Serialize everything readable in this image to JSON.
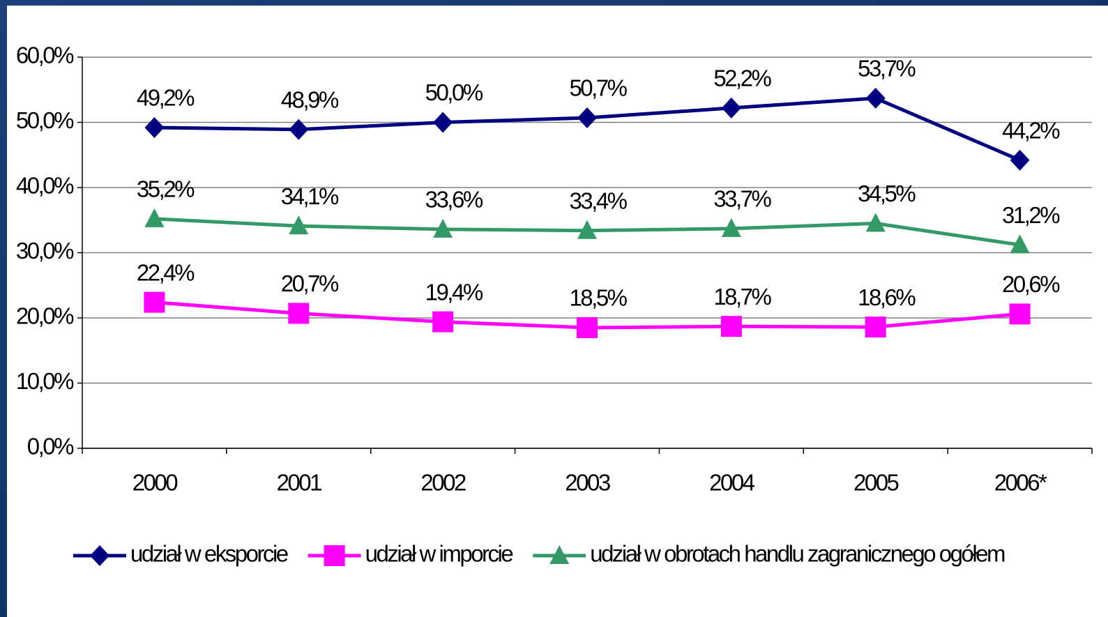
{
  "chart_data": {
    "type": "line",
    "categories": [
      "2000",
      "2001",
      "2002",
      "2003",
      "2004",
      "2005",
      "2006*"
    ],
    "series": [
      {
        "name": "udział w eksporcie",
        "color": "#000080",
        "marker": "diamond",
        "values": [
          49.2,
          48.9,
          50.0,
          50.7,
          52.2,
          53.7,
          44.2
        ],
        "value_labels": [
          "49,2%",
          "48,9%",
          "50,0%",
          "50,7%",
          "52,2%",
          "53,7%",
          "44,2%"
        ]
      },
      {
        "name": "udział w imporcie",
        "color": "#ff00ff",
        "marker": "square",
        "values": [
          22.4,
          20.7,
          19.4,
          18.5,
          18.7,
          18.6,
          20.6
        ],
        "value_labels": [
          "22,4%",
          "20,7%",
          "19,4%",
          "18,5%",
          "18,7%",
          "18,6%",
          "20,6%"
        ]
      },
      {
        "name": "udział w obrotach handlu zagranicznego ogółem",
        "color": "#339966",
        "marker": "triangle",
        "values": [
          35.2,
          34.1,
          33.6,
          33.4,
          33.7,
          34.5,
          31.2
        ],
        "value_labels": [
          "35,2%",
          "34,1%",
          "33,6%",
          "33,4%",
          "33,7%",
          "34,5%",
          "31,2%"
        ]
      }
    ],
    "ylim": [
      0,
      60
    ],
    "yticks": [
      {
        "value": 0,
        "label": "0,0%"
      },
      {
        "value": 10,
        "label": "10,0%"
      },
      {
        "value": 20,
        "label": "20,0%"
      },
      {
        "value": 30,
        "label": "30,0%"
      },
      {
        "value": 40,
        "label": "40,0%"
      },
      {
        "value": 50,
        "label": "50,0%"
      },
      {
        "value": 60,
        "label": "60,0%"
      }
    ],
    "grid": true,
    "legend": "bottom"
  }
}
